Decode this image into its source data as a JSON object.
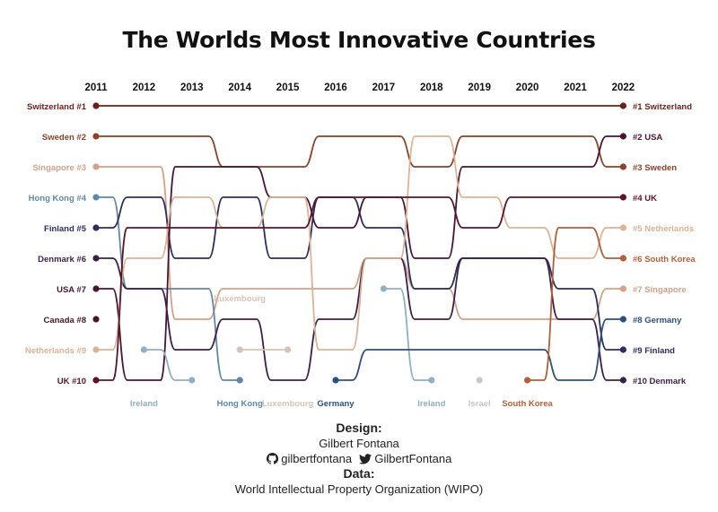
{
  "title": "The Worlds Most Innovative Countries",
  "credits": {
    "design_heading": "Design:",
    "designer": "Gilbert Fontana",
    "github_handle": "gilbertfontana",
    "twitter_handle": "GilbertFontana",
    "data_heading": "Data:",
    "source": "World Intellectual Property Organization (WIPO)"
  },
  "colors": {
    "Switzerland": "#6e1f1a",
    "Sweden": "#8e4129",
    "Singapore": "#d6a184",
    "Hong Kong": "#5f87a8",
    "Finland": "#2b2f5e",
    "Denmark": "#3c1f46",
    "USA": "#4b1433",
    "Canada": "#4a1526",
    "Netherlands": "#ddb396",
    "UK": "#5e1326",
    "Ireland": "#8fb0c2",
    "Luxembourg": "#d8c2b6",
    "Germany": "#2d4f7c",
    "Israel": "#c3c9cf",
    "South Korea": "#b35f38"
  },
  "chart_data": {
    "type": "bump",
    "title": "The Worlds Most Innovative Countries",
    "years": [
      "2011",
      "2012",
      "2013",
      "2014",
      "2015",
      "2016",
      "2017",
      "2018",
      "2019",
      "2020",
      "2021",
      "2022"
    ],
    "ranks": [
      1,
      2,
      3,
      4,
      5,
      6,
      7,
      8,
      9,
      10
    ],
    "series": [
      {
        "name": "Switzerland",
        "start_label": "Switzerland #1",
        "end_label": "#1 Switzerland",
        "ranks": [
          1,
          1,
          1,
          1,
          1,
          1,
          1,
          1,
          1,
          1,
          1,
          1
        ]
      },
      {
        "name": "Sweden",
        "start_label": "Sweden #2",
        "end_label": "#3 Sweden",
        "ranks": [
          2,
          2,
          2,
          3,
          3,
          2,
          2,
          3,
          2,
          2,
          2,
          3
        ]
      },
      {
        "name": "Singapore",
        "start_label": "Singapore #3",
        "end_label": "#7 Singapore",
        "ranks": [
          3,
          3,
          8,
          7,
          7,
          7,
          6,
          7,
          8,
          8,
          8,
          7
        ]
      },
      {
        "name": "Hong Kong",
        "start_label": "Hong Kong #4",
        "end_label": "",
        "ranks": [
          4,
          7,
          7,
          10,
          null,
          null,
          null,
          null,
          null,
          null,
          null,
          null
        ]
      },
      {
        "name": "Finland",
        "start_label": "Finland #5",
        "end_label": "#9 Finland",
        "ranks": [
          5,
          4,
          6,
          4,
          6,
          4,
          5,
          7,
          6,
          6,
          7,
          9
        ]
      },
      {
        "name": "Denmark",
        "start_label": "Denmark #6",
        "end_label": "#10 Denmark",
        "ranks": [
          6,
          7,
          9,
          8,
          10,
          8,
          6,
          8,
          6,
          6,
          8,
          10
        ]
      },
      {
        "name": "USA",
        "start_label": "USA #7",
        "end_label": "#2 USA",
        "ranks": [
          7,
          10,
          3,
          3,
          4,
          5,
          4,
          6,
          3,
          3,
          3,
          2
        ]
      },
      {
        "name": "Canada",
        "start_label": "Canada #8",
        "end_label": "",
        "ranks": [
          8,
          null,
          null,
          null,
          null,
          null,
          null,
          null,
          null,
          null,
          null,
          null
        ]
      },
      {
        "name": "Netherlands",
        "start_label": "Netherlands #9",
        "end_label": "#5 Netherlands",
        "ranks": [
          9,
          6,
          4,
          5,
          4,
          9,
          6,
          2,
          4,
          5,
          6,
          5
        ]
      },
      {
        "name": "UK",
        "start_label": "UK #10",
        "end_label": "#4 UK",
        "ranks": [
          10,
          5,
          5,
          5,
          5,
          4,
          4,
          4,
          5,
          4,
          4,
          4
        ]
      },
      {
        "name": "Ireland",
        "start_label": "",
        "end_label": "",
        "ranks": [
          null,
          9,
          10,
          null,
          null,
          null,
          null,
          null,
          null,
          null,
          null,
          null
        ]
      },
      {
        "name": "Ireland",
        "start_label": "",
        "end_label": "",
        "ranks": [
          null,
          null,
          null,
          null,
          null,
          null,
          7,
          10,
          null,
          null,
          null,
          null
        ]
      },
      {
        "name": "Luxembourg",
        "start_label": "",
        "end_label": "",
        "ranks": [
          null,
          null,
          null,
          9,
          9,
          null,
          null,
          null,
          null,
          null,
          null,
          null
        ]
      },
      {
        "name": "Germany",
        "start_label": "",
        "end_label": "#8 Germany",
        "ranks": [
          null,
          null,
          null,
          null,
          null,
          10,
          9,
          9,
          9,
          9,
          10,
          8
        ]
      },
      {
        "name": "Israel",
        "start_label": "",
        "end_label": "",
        "ranks": [
          null,
          null,
          null,
          null,
          null,
          null,
          null,
          null,
          10,
          null,
          null,
          null
        ]
      },
      {
        "name": "South Korea",
        "start_label": "",
        "end_label": "#6 South Korea",
        "ranks": [
          null,
          null,
          null,
          null,
          null,
          null,
          null,
          null,
          null,
          10,
          5,
          6
        ]
      }
    ],
    "annotations": [
      {
        "text": "Ireland",
        "year": "2012",
        "rank": 10,
        "position": "below"
      },
      {
        "text": "Luxembourg",
        "year": "2014",
        "rank": 8,
        "position": "above"
      },
      {
        "text": "Hong Kong",
        "year": "2014",
        "rank": 10,
        "position": "below"
      },
      {
        "text": "Luxembourg",
        "year": "2015",
        "rank": 10,
        "position": "below"
      },
      {
        "text": "Germany",
        "year": "2016",
        "rank": 10,
        "position": "below"
      },
      {
        "text": "Ireland",
        "year": "2018",
        "rank": 10,
        "position": "below"
      },
      {
        "text": "Israel",
        "year": "2019",
        "rank": 10,
        "position": "below"
      },
      {
        "text": "South Korea",
        "year": "2020",
        "rank": 10,
        "position": "below"
      }
    ]
  }
}
